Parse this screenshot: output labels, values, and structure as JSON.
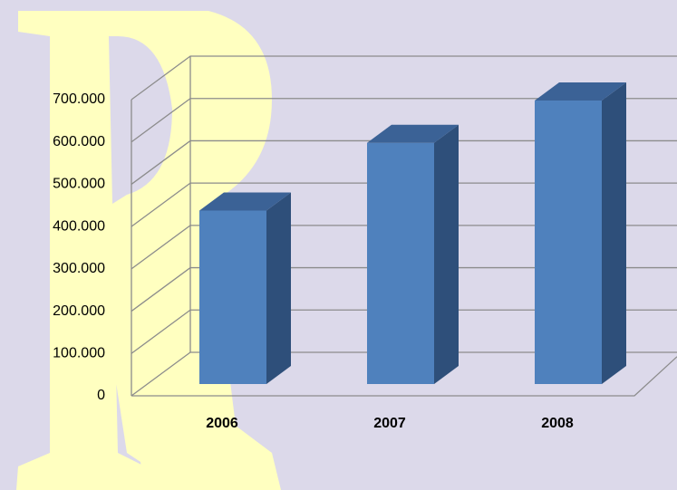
{
  "chart_data": {
    "type": "bar3d",
    "categories": [
      "2006",
      "2007",
      "2008"
    ],
    "values": [
      410000,
      570000,
      670000
    ],
    "color": "#4f81bd",
    "ylim": [
      0,
      700000
    ],
    "yticks": [
      0,
      {
        "value": 100000,
        "label": "100.000"
      },
      {
        "value": 200000,
        "label": "200.000"
      },
      {
        "value": 300000,
        "label": "300.000"
      },
      {
        "value": 400000,
        "label": "400.000"
      },
      {
        "value": 500000,
        "label": "500.000"
      },
      {
        "value": 600000,
        "label": "600.000"
      },
      {
        "value": 700000,
        "label": "700.000"
      }
    ],
    "grid": true
  }
}
